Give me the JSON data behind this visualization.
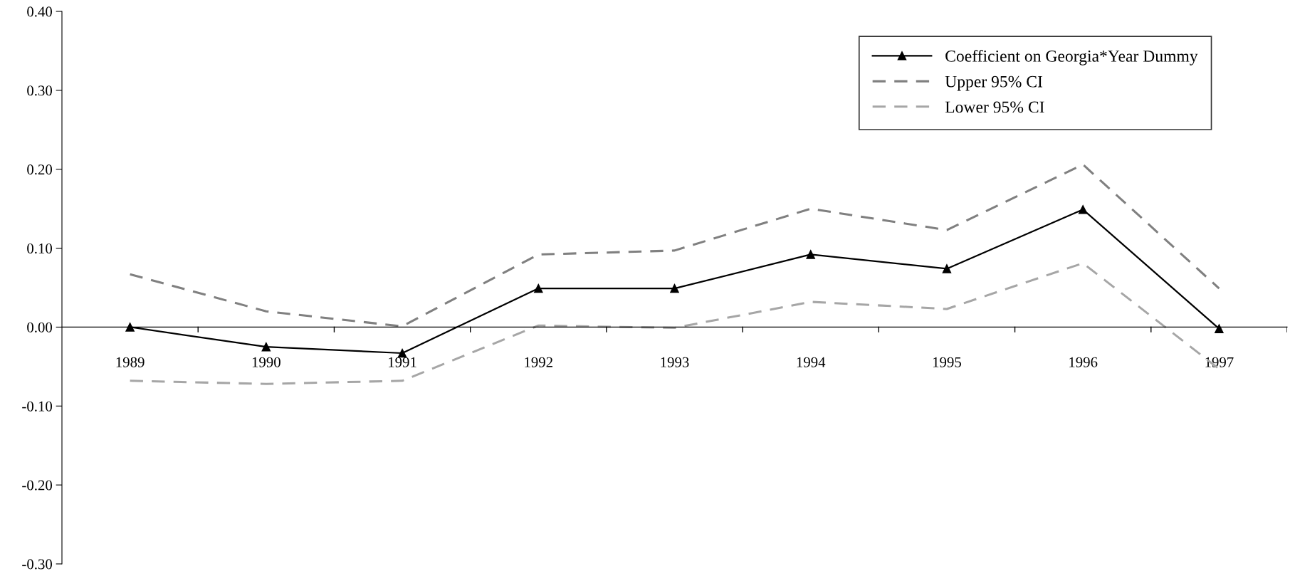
{
  "chart_data": {
    "type": "line",
    "categories": [
      "1989",
      "1990",
      "1991",
      "1992",
      "1993",
      "1994",
      "1995",
      "1996",
      "1997"
    ],
    "series": [
      {
        "name": "Coefficient on Georgia*Year Dummy",
        "color": "#000000",
        "marker": "triangle",
        "line_style": "solid",
        "values": [
          0.0,
          -0.025,
          -0.033,
          0.049,
          0.049,
          0.092,
          0.074,
          0.149,
          -0.002
        ]
      },
      {
        "name": "Upper 95% CI",
        "color": "#808080",
        "marker": "none",
        "line_style": "dashed",
        "values": [
          0.067,
          0.02,
          0.001,
          0.092,
          0.097,
          0.15,
          0.123,
          0.206,
          0.049
        ]
      },
      {
        "name": "Lower 95% CI",
        "color": "#a6a6a6",
        "marker": "none",
        "line_style": "dashed",
        "values": [
          -0.068,
          -0.072,
          -0.068,
          0.002,
          -0.001,
          0.032,
          0.023,
          0.081,
          -0.053
        ]
      }
    ],
    "ylim": [
      -0.3,
      0.4
    ],
    "yticks": [
      {
        "value": -0.3,
        "label": "-0.30"
      },
      {
        "value": -0.2,
        "label": "-0.20"
      },
      {
        "value": -0.1,
        "label": "-0.10"
      },
      {
        "value": 0,
        "label": "0.00"
      },
      {
        "value": 0.1,
        "label": "0.10"
      },
      {
        "value": 0.2,
        "label": "0.20"
      },
      {
        "value": 0.3,
        "label": "0.30"
      },
      {
        "value": 0.4,
        "label": "0.40"
      }
    ],
    "grid": false,
    "legend": "top right"
  }
}
